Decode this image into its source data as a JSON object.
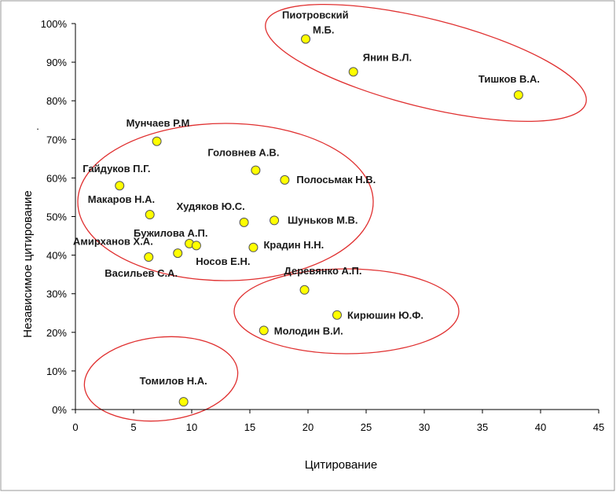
{
  "colors": {
    "point_fill": "#ffff00",
    "point_stroke": "#555555",
    "ellipse_stroke": "#e03030",
    "axis": "#000000",
    "frame": "#999999"
  },
  "chart_data": {
    "type": "scatter",
    "title": "",
    "xlabel": "Цитирование",
    "ylabel": "Независимое цитирование",
    "xlim": [
      0,
      45
    ],
    "ylim": [
      0,
      100
    ],
    "xticks": [
      0,
      5,
      10,
      15,
      20,
      25,
      30,
      35,
      40,
      45
    ],
    "xtick_labels": [
      "0",
      "5",
      "10",
      "15",
      "20",
      "25",
      "30",
      "35",
      "40",
      "45"
    ],
    "yticks": [
      0,
      10,
      20,
      30,
      40,
      50,
      60,
      70,
      80,
      90,
      100
    ],
    "ytick_labels": [
      "0%",
      "10%",
      "20%",
      "30%",
      "40%",
      "50%",
      "60%",
      "70%",
      "80%",
      "90%",
      "100%"
    ],
    "grid": false,
    "points": [
      {
        "label": "Пиотровский М.Б.",
        "x": 19.8,
        "y": 96
      },
      {
        "label": "Янин В.Л.",
        "x": 23.9,
        "y": 87.5
      },
      {
        "label": "Тишков В.А.",
        "x": 38.1,
        "y": 81.5
      },
      {
        "label": "Мунчаев Р.М",
        "x": 7.0,
        "y": 69.5
      },
      {
        "label": "Головнев А.В.",
        "x": 15.5,
        "y": 62
      },
      {
        "label": "Полосьмак Н.В.",
        "x": 18.0,
        "y": 59.5
      },
      {
        "label": "Гайдуков П.Г.",
        "x": 3.8,
        "y": 58
      },
      {
        "label": "Макаров Н.А.",
        "x": 6.4,
        "y": 50.5
      },
      {
        "label": "Худяков Ю.С.",
        "x": 14.5,
        "y": 48.5
      },
      {
        "label": "Шуньков М.В.",
        "x": 17.1,
        "y": 49
      },
      {
        "label": "Бужилова А.П.",
        "x": 9.8,
        "y": 43
      },
      {
        "label": "Амирханов Х.А.",
        "x": 10.4,
        "y": 42.5
      },
      {
        "label": "Крадин Н.Н.",
        "x": 15.3,
        "y": 42
      },
      {
        "label": "Носов Е.Н.",
        "x": 8.8,
        "y": 40.5
      },
      {
        "label": "Васильев С.А.",
        "x": 6.3,
        "y": 39.5
      },
      {
        "label": "Деревянко А.П.",
        "x": 19.7,
        "y": 31
      },
      {
        "label": "Кирюшин Ю.Ф.",
        "x": 22.5,
        "y": 24.5
      },
      {
        "label": "Молодин В.И.",
        "x": 16.2,
        "y": 20.5
      },
      {
        "label": "Томилов Н.А.",
        "x": 9.3,
        "y": 2
      }
    ],
    "clusters": [
      {
        "name": "top-right",
        "members": [
          "Пиотровский М.Б.",
          "Янин В.Л.",
          "Тишков В.А."
        ]
      },
      {
        "name": "middle-left",
        "members": [
          "Мунчаев Р.М",
          "Головнев А.В.",
          "Полосьмак Н.В.",
          "Гайдуков П.Г.",
          "Макаров Н.А.",
          "Худяков Ю.С.",
          "Шуньков М.В.",
          "Бужилова А.П.",
          "Амирханов Х.А.",
          "Крадин Н.Н.",
          "Носов Е.Н.",
          "Васильев С.А."
        ]
      },
      {
        "name": "middle-right",
        "members": [
          "Деревянко А.П.",
          "Кирюшин Ю.Ф.",
          "Молодин В.И."
        ]
      },
      {
        "name": "bottom-left",
        "members": [
          "Томилов Н.А."
        ]
      }
    ]
  }
}
